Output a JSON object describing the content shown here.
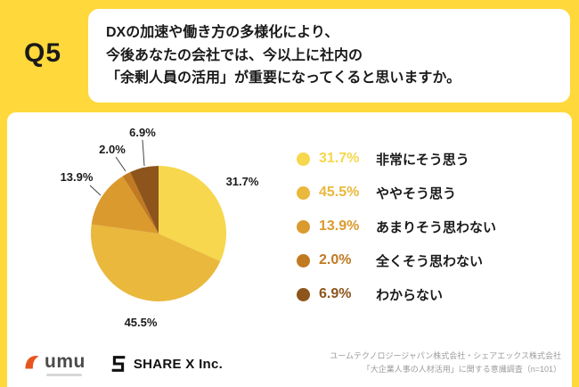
{
  "header": {
    "q_label": "Q5",
    "question_line1": "DXの加速や働き方の多様化により、",
    "question_line2": "今後あなたの会社では、今以上に社内の",
    "question_line3": "「余剰人員の活用」が重要になってくると思いますか。"
  },
  "chart_data": {
    "type": "pie",
    "title": "",
    "categories": [
      "非常にそう思う",
      "ややそう思う",
      "あまりそう思わない",
      "全くそう思わない",
      "わからない"
    ],
    "values": [
      31.7,
      45.5,
      13.9,
      2.0,
      6.9
    ],
    "unit": "%",
    "value_labels": [
      "31.7%",
      "45.5%",
      "13.9%",
      "2.0%",
      "6.9%"
    ],
    "colors": [
      "#F6D74D",
      "#E9B83C",
      "#DB9A2E",
      "#C17A22",
      "#8D551C"
    ],
    "start_angle": "top",
    "direction": "clockwise",
    "legend_position": "right",
    "n": 101
  },
  "legend": {
    "items": [
      {
        "percent": "31.7%",
        "label": "非常にそう思う",
        "color": "#F6D74D"
      },
      {
        "percent": "45.5%",
        "label": "ややそう思う",
        "color": "#E9B83C"
      },
      {
        "percent": "13.9%",
        "label": "あまりそう思わない",
        "color": "#DB9A2E"
      },
      {
        "percent": "2.0%",
        "label": "全くそう思わない",
        "color": "#C17A22"
      },
      {
        "percent": "6.9%",
        "label": "わからない",
        "color": "#8D551C"
      }
    ]
  },
  "footer": {
    "umu_logo": "umu",
    "sharex_logo": "SHARE X Inc.",
    "credit_line1": "ユームテクノロジージャパン株式会社・シェアエックス株式会社",
    "credit_line2": "「大企業人事の人材活用」に関する意識調査（n=101）"
  },
  "colors": {
    "background": "#FFD83C",
    "card": "#FFFFFF",
    "text": "#1A1A1A",
    "credit_text": "#9B9B9B",
    "umu_icon": "#E8541F"
  }
}
